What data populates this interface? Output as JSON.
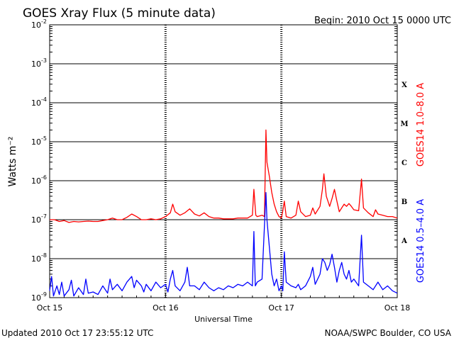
{
  "header": {
    "title": "GOES Xray Flux (5 minute data)",
    "begin": "Begin:  2010 Oct 15 0000 UTC"
  },
  "footer": {
    "updated": "Updated 2010 Oct 17 23:55:12 UTC",
    "credit": "NOAA/SWPC Boulder, CO USA"
  },
  "colors": {
    "long_channel": "#ff0000",
    "short_channel": "#0000ff",
    "grid": "#000000"
  },
  "chart_data": {
    "type": "line",
    "title": "GOES Xray Flux (5 minute data)",
    "xlabel": "Universal Time",
    "ylabel": "Watts m⁻²",
    "x_range_hours": [
      0,
      72
    ],
    "ylim": [
      1e-09,
      0.01
    ],
    "yscale": "log",
    "grid": true,
    "x_ticks": [
      {
        "label": "Oct 15",
        "hours": 0
      },
      {
        "label": "Oct 16",
        "hours": 24
      },
      {
        "label": "Oct 17",
        "hours": 48
      },
      {
        "label": "Oct 18",
        "hours": 72
      }
    ],
    "y_ticks": [
      {
        "base": "10",
        "exp": "-9",
        "value": 1e-09
      },
      {
        "base": "10",
        "exp": "-8",
        "value": 1e-08
      },
      {
        "base": "10",
        "exp": "-7",
        "value": 1e-07
      },
      {
        "base": "10",
        "exp": "-6",
        "value": 1e-06
      },
      {
        "base": "10",
        "exp": "-5",
        "value": 1e-05
      },
      {
        "base": "10",
        "exp": "-4",
        "value": 0.0001
      },
      {
        "base": "10",
        "exp": "-3",
        "value": 0.001
      },
      {
        "base": "10",
        "exp": "-2",
        "value": 0.01
      }
    ],
    "flare_classes": [
      {
        "label": "X",
        "value": 0.0003
      },
      {
        "label": "M",
        "value": 3e-05
      },
      {
        "label": "C",
        "value": 3e-06
      },
      {
        "label": "B",
        "value": 3e-07
      },
      {
        "label": "A",
        "value": 3e-08
      }
    ],
    "series": [
      {
        "name": "GOES14 1.0–8.0 A",
        "color": "#ff0000",
        "points": [
          [
            0,
            1e-07
          ],
          [
            1,
            1e-07
          ],
          [
            2,
            9e-08
          ],
          [
            3,
            9.5e-08
          ],
          [
            4,
            8.5e-08
          ],
          [
            5,
            9e-08
          ],
          [
            6,
            8.8e-08
          ],
          [
            7,
            9e-08
          ],
          [
            8,
            9.2e-08
          ],
          [
            9,
            9e-08
          ],
          [
            10,
            9e-08
          ],
          [
            11,
            9.5e-08
          ],
          [
            12,
            1e-07
          ],
          [
            13,
            1.1e-07
          ],
          [
            14,
            1e-07
          ],
          [
            15,
            1e-07
          ],
          [
            16,
            1.15e-07
          ],
          [
            17,
            1.4e-07
          ],
          [
            18,
            1.2e-07
          ],
          [
            19,
            1e-07
          ],
          [
            20,
            1e-07
          ],
          [
            21,
            1.05e-07
          ],
          [
            22,
            1e-07
          ],
          [
            23,
            1.05e-07
          ],
          [
            24,
            1.2e-07
          ],
          [
            25,
            1.5e-07
          ],
          [
            25.5,
            2.5e-07
          ],
          [
            26,
            1.6e-07
          ],
          [
            27,
            1.3e-07
          ],
          [
            28,
            1.5e-07
          ],
          [
            29,
            1.9e-07
          ],
          [
            30,
            1.4e-07
          ],
          [
            31,
            1.25e-07
          ],
          [
            32,
            1.5e-07
          ],
          [
            33,
            1.2e-07
          ],
          [
            34,
            1.1e-07
          ],
          [
            35,
            1.1e-07
          ],
          [
            36,
            1.05e-07
          ],
          [
            37,
            1.05e-07
          ],
          [
            38,
            1.05e-07
          ],
          [
            39,
            1.1e-07
          ],
          [
            40,
            1.1e-07
          ],
          [
            41,
            1.1e-07
          ],
          [
            42,
            1.3e-07
          ],
          [
            42.3,
            6e-07
          ],
          [
            42.7,
            1.3e-07
          ],
          [
            43,
            1.2e-07
          ],
          [
            44,
            1.3e-07
          ],
          [
            44.5,
            1.2e-07
          ],
          [
            44.8,
            2e-05
          ],
          [
            45,
            3e-06
          ],
          [
            45.5,
            1.3e-06
          ],
          [
            46,
            5e-07
          ],
          [
            46.5,
            2.5e-07
          ],
          [
            47,
            1.6e-07
          ],
          [
            47.5,
            1.2e-07
          ],
          [
            48,
            1.1e-07
          ],
          [
            48.3,
            1.7e-07
          ],
          [
            48.6,
            3e-07
          ],
          [
            49,
            1.2e-07
          ],
          [
            50,
            1.1e-07
          ],
          [
            51,
            1.3e-07
          ],
          [
            51.5,
            3e-07
          ],
          [
            52,
            1.6e-07
          ],
          [
            53,
            1.2e-07
          ],
          [
            54,
            1.3e-07
          ],
          [
            54.5,
            2e-07
          ],
          [
            55,
            1.4e-07
          ],
          [
            56,
            2.2e-07
          ],
          [
            56.5,
            6e-07
          ],
          [
            56.8,
            1.5e-06
          ],
          [
            57.3,
            4e-07
          ],
          [
            58,
            2.2e-07
          ],
          [
            58.5,
            3.5e-07
          ],
          [
            59,
            6e-07
          ],
          [
            59.5,
            3e-07
          ],
          [
            60,
            1.6e-07
          ],
          [
            60.5,
            2e-07
          ],
          [
            61,
            2.5e-07
          ],
          [
            61.5,
            2.2e-07
          ],
          [
            62,
            2.6e-07
          ],
          [
            62.5,
            2.2e-07
          ],
          [
            63,
            1.8e-07
          ],
          [
            64,
            1.7e-07
          ],
          [
            64.6,
            1.1e-06
          ],
          [
            65,
            2e-07
          ],
          [
            66,
            1.5e-07
          ],
          [
            67,
            1.2e-07
          ],
          [
            67.5,
            1.8e-07
          ],
          [
            68,
            1.4e-07
          ],
          [
            69,
            1.3e-07
          ],
          [
            70,
            1.2e-07
          ],
          [
            71,
            1.2e-07
          ],
          [
            72,
            1.1e-07
          ]
        ]
      },
      {
        "name": "GOES14 0.5–4.0 A",
        "color": "#0000ff",
        "points": [
          [
            0,
            1.5e-09
          ],
          [
            0.4,
            3.5e-09
          ],
          [
            0.8,
            1.1e-09
          ],
          [
            1.5,
            2e-09
          ],
          [
            2,
            1.2e-09
          ],
          [
            2.5,
            2.5e-09
          ],
          [
            3,
            1.1e-09
          ],
          [
            4,
            1.6e-09
          ],
          [
            4.5,
            2.8e-09
          ],
          [
            5,
            1.1e-09
          ],
          [
            6,
            1.8e-09
          ],
          [
            7,
            1.2e-09
          ],
          [
            7.5,
            3e-09
          ],
          [
            8,
            1.3e-09
          ],
          [
            9,
            1.4e-09
          ],
          [
            10,
            1.2e-09
          ],
          [
            11,
            2e-09
          ],
          [
            12,
            1.3e-09
          ],
          [
            12.5,
            3e-09
          ],
          [
            13,
            1.6e-09
          ],
          [
            14,
            2.2e-09
          ],
          [
            15,
            1.5e-09
          ],
          [
            16,
            2.5e-09
          ],
          [
            17,
            3.5e-09
          ],
          [
            17.5,
            1.8e-09
          ],
          [
            18,
            2.8e-09
          ],
          [
            19,
            2e-09
          ],
          [
            19.5,
            1.4e-09
          ],
          [
            20,
            2.2e-09
          ],
          [
            21,
            1.5e-09
          ],
          [
            22,
            2.5e-09
          ],
          [
            23,
            1.8e-09
          ],
          [
            24,
            2.2e-09
          ],
          [
            24.5,
            1.4e-09
          ],
          [
            25,
            3e-09
          ],
          [
            25.5,
            5e-09
          ],
          [
            26,
            2e-09
          ],
          [
            27,
            1.5e-09
          ],
          [
            28,
            2.5e-09
          ],
          [
            28.5,
            6e-09
          ],
          [
            29,
            2e-09
          ],
          [
            30,
            2e-09
          ],
          [
            31,
            1.6e-09
          ],
          [
            32,
            2.5e-09
          ],
          [
            33,
            1.8e-09
          ],
          [
            34,
            1.5e-09
          ],
          [
            35,
            1.8e-09
          ],
          [
            36,
            1.6e-09
          ],
          [
            37,
            2e-09
          ],
          [
            38,
            1.8e-09
          ],
          [
            39,
            2.2e-09
          ],
          [
            40,
            2e-09
          ],
          [
            41,
            2.5e-09
          ],
          [
            42,
            2e-09
          ],
          [
            42.3,
            5e-08
          ],
          [
            42.6,
            2e-09
          ],
          [
            43,
            2.5e-09
          ],
          [
            44,
            3e-09
          ],
          [
            44.8,
            5e-07
          ],
          [
            45,
            1e-07
          ],
          [
            45.5,
            2e-08
          ],
          [
            46,
            4e-09
          ],
          [
            46.5,
            2e-09
          ],
          [
            47,
            3e-09
          ],
          [
            47.5,
            1.5e-09
          ],
          [
            48,
            2e-09
          ],
          [
            48.3,
            1.5e-09
          ],
          [
            48.6,
            1.5e-08
          ],
          [
            49,
            2.5e-09
          ],
          [
            50,
            2e-09
          ],
          [
            51,
            1.8e-09
          ],
          [
            51.5,
            2.2e-09
          ],
          [
            52,
            1.6e-09
          ],
          [
            53,
            2e-09
          ],
          [
            54,
            3.5e-09
          ],
          [
            54.5,
            6e-09
          ],
          [
            55,
            2.2e-09
          ],
          [
            56,
            4e-09
          ],
          [
            56.5,
            1e-08
          ],
          [
            57,
            8e-09
          ],
          [
            57.5,
            5e-09
          ],
          [
            58,
            7e-09
          ],
          [
            58.5,
            1.3e-08
          ],
          [
            59,
            6e-09
          ],
          [
            59.5,
            2.5e-09
          ],
          [
            60,
            5e-09
          ],
          [
            60.5,
            8e-09
          ],
          [
            61,
            4e-09
          ],
          [
            61.5,
            3e-09
          ],
          [
            62,
            5e-09
          ],
          [
            62.5,
            2.5e-09
          ],
          [
            63,
            3e-09
          ],
          [
            64,
            2e-09
          ],
          [
            64.6,
            4e-08
          ],
          [
            65,
            2.5e-09
          ],
          [
            66,
            2e-09
          ],
          [
            67,
            1.6e-09
          ],
          [
            68,
            2.5e-09
          ],
          [
            69,
            1.6e-09
          ],
          [
            70,
            2e-09
          ],
          [
            71,
            1.5e-09
          ],
          [
            72,
            1.3e-09
          ]
        ]
      }
    ]
  }
}
